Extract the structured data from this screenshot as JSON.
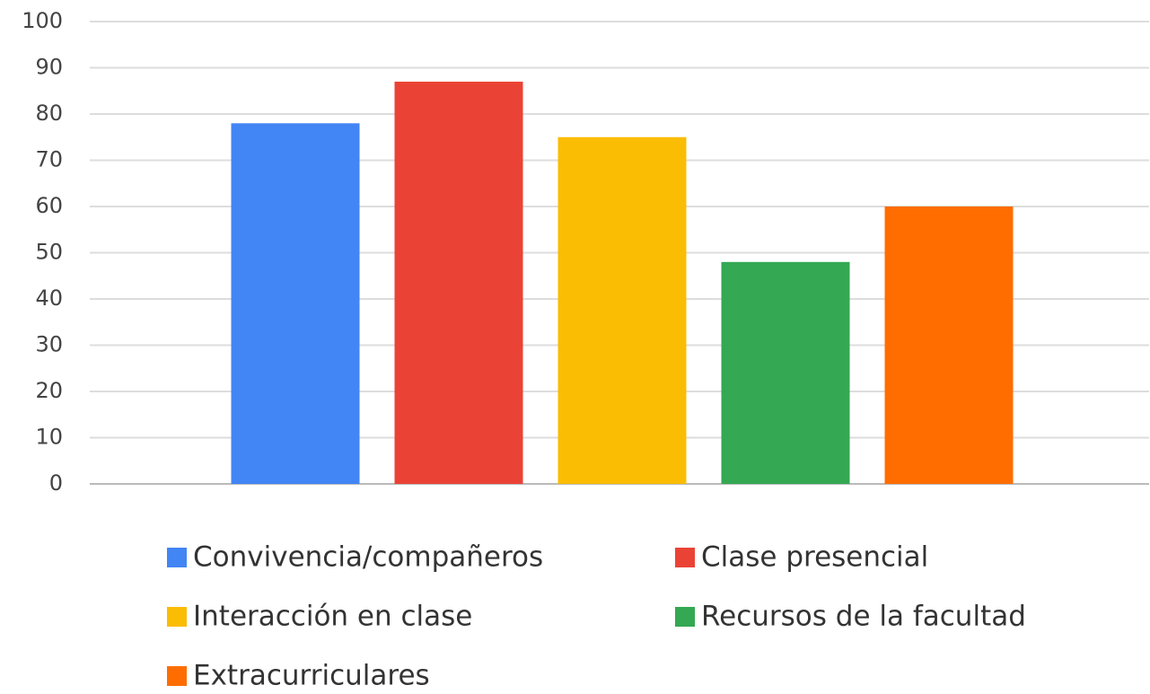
{
  "chart_data": {
    "type": "bar",
    "categories": [
      null
    ],
    "series": [
      {
        "name": "Convivencia/compañeros",
        "color": "#4285f4",
        "values": [
          78
        ]
      },
      {
        "name": "Clase presencial",
        "color": "#ea4335",
        "values": [
          87
        ]
      },
      {
        "name": "Interacción en clase",
        "color": "#fbbc04",
        "values": [
          75
        ]
      },
      {
        "name": "Recursos de la facultad",
        "color": "#34a853",
        "values": [
          48
        ]
      },
      {
        "name": "Extracurriculares",
        "color": "#ff6d01",
        "values": [
          60
        ]
      }
    ],
    "ylim": [
      0,
      100
    ],
    "yticks": [
      0,
      10,
      20,
      30,
      40,
      50,
      60,
      70,
      80,
      90,
      100
    ],
    "grid": true,
    "legend": "bottom"
  }
}
